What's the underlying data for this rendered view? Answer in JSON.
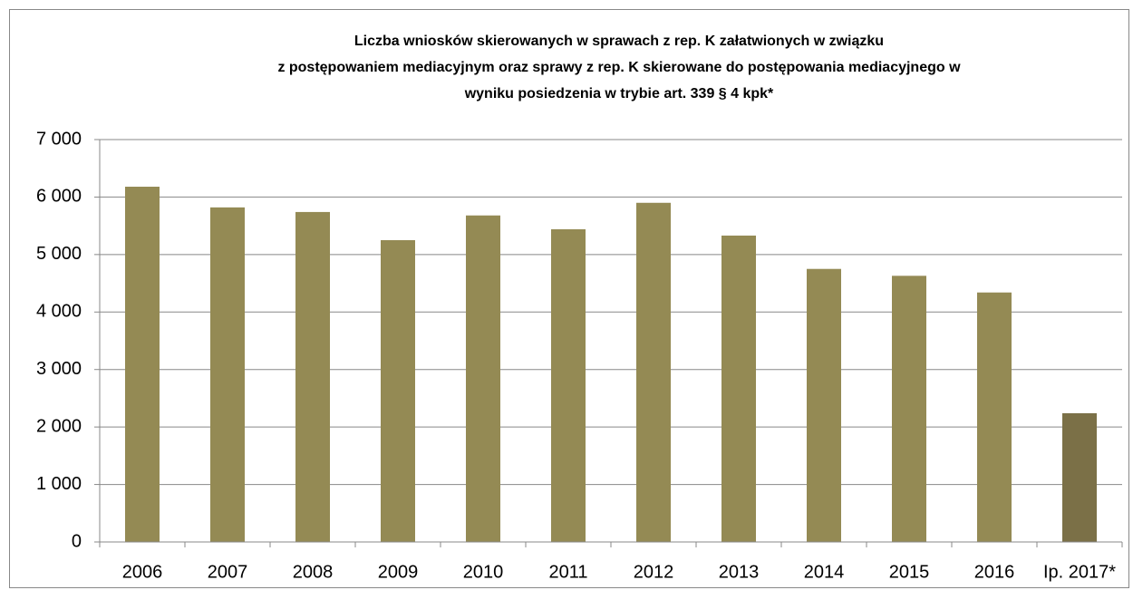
{
  "chart_data": {
    "type": "bar",
    "title": [
      "Liczba wniosków skierowanych w sprawach z rep. K załatwionych w związku",
      "z postępowaniem mediacyjnym oraz sprawy z rep. K skierowane do postępowania mediacyjnego w",
      "wyniku posiedzenia w trybie art. 339 § 4 kpk*"
    ],
    "categories": [
      "2006",
      "2007",
      "2008",
      "2009",
      "2010",
      "2011",
      "2012",
      "2013",
      "2014",
      "2015",
      "2016",
      "Ip. 2017*"
    ],
    "values": [
      6180,
      5820,
      5740,
      5250,
      5680,
      5440,
      5900,
      5330,
      4750,
      4630,
      4340,
      2240
    ],
    "colors": [
      "#948a54",
      "#948a54",
      "#948a54",
      "#948a54",
      "#948a54",
      "#948a54",
      "#948a54",
      "#948a54",
      "#948a54",
      "#948a54",
      "#948a54",
      "#7b7047"
    ],
    "ylim": [
      0,
      7000
    ],
    "yticks": [
      0,
      {
        "value": 1000,
        "label": "1 000"
      },
      {
        "value": 2000,
        "label": "2 000"
      },
      {
        "value": 3000,
        "label": "3 000"
      },
      {
        "value": 4000,
        "label": "4 000"
      },
      {
        "value": 5000,
        "label": "5 000"
      },
      {
        "value": 6000,
        "label": "6 000"
      },
      {
        "value": 7000,
        "label": "7 000"
      }
    ],
    "grid": true
  }
}
